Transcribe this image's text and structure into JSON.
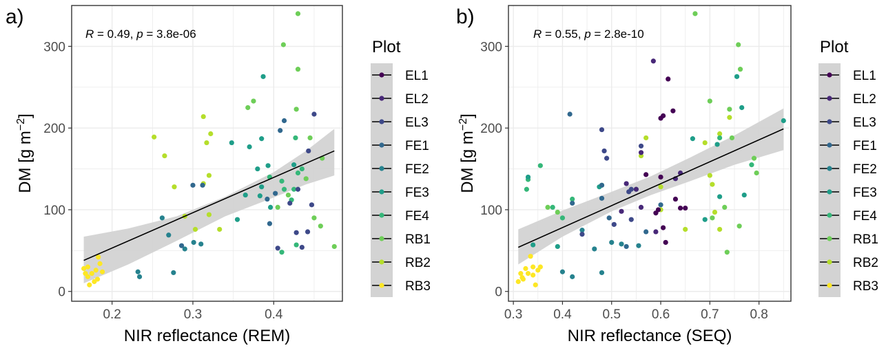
{
  "chart_data": [
    {
      "type": "scatter",
      "panel_tag": "a)",
      "xlabel": "NIR reflectance (REM)",
      "ylabel": "DM [g m",
      "ylabel_sup": "−2",
      "ylabel_end": "]",
      "xlim": [
        0.15,
        0.485
      ],
      "ylim": [
        -12,
        350
      ],
      "xticks": [
        "0.2",
        "0.3",
        "0.4"
      ],
      "xtick_values": [
        0.2,
        0.3,
        0.4
      ],
      "yticks": [
        "0",
        "100",
        "200",
        "300"
      ],
      "ytick_values": [
        0,
        100,
        200,
        300
      ],
      "grid": true,
      "stats": {
        "r_symbol": "R",
        "r_text": " = 0.49, ",
        "p_symbol": "p",
        "p_text": " = 3.8e-06"
      },
      "fit": {
        "x": [
          0.165,
          0.475
        ],
        "y": [
          38,
          172
        ]
      },
      "band": {
        "x": [
          0.165,
          0.22,
          0.28,
          0.34,
          0.4,
          0.44,
          0.475
        ],
        "lower": [
          10,
          33,
          62,
          92,
          115,
          131,
          142
        ],
        "upper": [
          67,
          77,
          92,
          116,
          146,
          172,
          199
        ]
      },
      "points": [
        {
          "x": 0.165,
          "y": 28,
          "c": "RB3"
        },
        {
          "x": 0.167,
          "y": 22,
          "c": "RB3"
        },
        {
          "x": 0.17,
          "y": 30,
          "c": "RB3"
        },
        {
          "x": 0.172,
          "y": 8,
          "c": "RB3"
        },
        {
          "x": 0.175,
          "y": 22,
          "c": "RB3"
        },
        {
          "x": 0.178,
          "y": 12,
          "c": "RB3"
        },
        {
          "x": 0.18,
          "y": 26,
          "c": "RB3"
        },
        {
          "x": 0.182,
          "y": 15,
          "c": "RB3"
        },
        {
          "x": 0.183,
          "y": 42,
          "c": "RB3"
        },
        {
          "x": 0.185,
          "y": 34,
          "c": "RB3"
        },
        {
          "x": 0.188,
          "y": 24,
          "c": "RB3"
        },
        {
          "x": 0.17,
          "y": 18,
          "c": "RB3"
        },
        {
          "x": 0.252,
          "y": 189,
          "c": "RB2"
        },
        {
          "x": 0.265,
          "y": 166,
          "c": "RB2"
        },
        {
          "x": 0.277,
          "y": 128,
          "c": "RB2"
        },
        {
          "x": 0.29,
          "y": 92,
          "c": "RB2"
        },
        {
          "x": 0.303,
          "y": 76,
          "c": "RB2"
        },
        {
          "x": 0.313,
          "y": 214,
          "c": "RB2"
        },
        {
          "x": 0.317,
          "y": 182,
          "c": "RB2"
        },
        {
          "x": 0.322,
          "y": 193,
          "c": "RB2"
        },
        {
          "x": 0.313,
          "y": 132,
          "c": "RB2"
        },
        {
          "x": 0.32,
          "y": 142,
          "c": "RB2"
        },
        {
          "x": 0.333,
          "y": 76,
          "c": "RB2"
        },
        {
          "x": 0.32,
          "y": 94,
          "c": "RB2"
        },
        {
          "x": 0.368,
          "y": 225,
          "c": "RB1"
        },
        {
          "x": 0.375,
          "y": 233,
          "c": "RB1"
        },
        {
          "x": 0.412,
          "y": 302,
          "c": "RB1"
        },
        {
          "x": 0.428,
          "y": 223,
          "c": "RB1"
        },
        {
          "x": 0.43,
          "y": 272,
          "c": "RB1"
        },
        {
          "x": 0.445,
          "y": 188,
          "c": "RB1"
        },
        {
          "x": 0.46,
          "y": 163,
          "c": "RB1"
        },
        {
          "x": 0.44,
          "y": 138,
          "c": "RB1"
        },
        {
          "x": 0.45,
          "y": 90,
          "c": "RB1"
        },
        {
          "x": 0.458,
          "y": 80,
          "c": "RB1"
        },
        {
          "x": 0.475,
          "y": 55,
          "c": "RB1"
        },
        {
          "x": 0.43,
          "y": 340,
          "c": "RB1"
        },
        {
          "x": 0.405,
          "y": 103,
          "c": "RB1"
        },
        {
          "x": 0.418,
          "y": 118,
          "c": "RB1"
        },
        {
          "x": 0.413,
          "y": 125,
          "c": "FE4"
        },
        {
          "x": 0.427,
          "y": 188,
          "c": "FE4"
        },
        {
          "x": 0.435,
          "y": 150,
          "c": "FE4"
        },
        {
          "x": 0.41,
          "y": 135,
          "c": "FE4"
        },
        {
          "x": 0.425,
          "y": 125,
          "c": "FE4"
        },
        {
          "x": 0.422,
          "y": 112,
          "c": "FE4"
        },
        {
          "x": 0.428,
          "y": 57,
          "c": "FE4"
        },
        {
          "x": 0.41,
          "y": 48,
          "c": "FE4"
        },
        {
          "x": 0.395,
          "y": 140,
          "c": "FE4"
        },
        {
          "x": 0.43,
          "y": 145,
          "c": "FE4"
        },
        {
          "x": 0.348,
          "y": 182,
          "c": "FE3"
        },
        {
          "x": 0.37,
          "y": 177,
          "c": "FE3"
        },
        {
          "x": 0.387,
          "y": 263,
          "c": "FE3"
        },
        {
          "x": 0.385,
          "y": 187,
          "c": "FE3"
        },
        {
          "x": 0.38,
          "y": 150,
          "c": "FE3"
        },
        {
          "x": 0.393,
          "y": 154,
          "c": "FE3"
        },
        {
          "x": 0.385,
          "y": 128,
          "c": "FE3"
        },
        {
          "x": 0.365,
          "y": 118,
          "c": "FE3"
        },
        {
          "x": 0.383,
          "y": 117,
          "c": "FE3"
        },
        {
          "x": 0.396,
          "y": 103,
          "c": "FE3"
        },
        {
          "x": 0.355,
          "y": 88,
          "c": "FE3"
        },
        {
          "x": 0.425,
          "y": 155,
          "c": "FE3"
        },
        {
          "x": 0.262,
          "y": 90,
          "c": "FE2"
        },
        {
          "x": 0.27,
          "y": 69,
          "c": "FE2"
        },
        {
          "x": 0.29,
          "y": 52,
          "c": "FE2"
        },
        {
          "x": 0.276,
          "y": 23,
          "c": "FE2"
        },
        {
          "x": 0.301,
          "y": 60,
          "c": "FE2"
        },
        {
          "x": 0.31,
          "y": 58,
          "c": "FE2"
        },
        {
          "x": 0.234,
          "y": 18,
          "c": "FE2"
        },
        {
          "x": 0.232,
          "y": 24,
          "c": "FE2"
        },
        {
          "x": 0.286,
          "y": 56,
          "c": "FE1"
        },
        {
          "x": 0.3,
          "y": 130,
          "c": "FE1"
        },
        {
          "x": 0.312,
          "y": 130,
          "c": "FE1"
        },
        {
          "x": 0.408,
          "y": 197,
          "c": "FE1"
        },
        {
          "x": 0.413,
          "y": 209,
          "c": "FE1"
        },
        {
          "x": 0.402,
          "y": 120,
          "c": "FE1"
        },
        {
          "x": 0.395,
          "y": 83,
          "c": "FE1"
        },
        {
          "x": 0.392,
          "y": 113,
          "c": "FE1"
        },
        {
          "x": 0.42,
          "y": 108,
          "c": "EL3"
        },
        {
          "x": 0.43,
          "y": 125,
          "c": "EL3"
        },
        {
          "x": 0.443,
          "y": 172,
          "c": "EL3"
        },
        {
          "x": 0.45,
          "y": 217,
          "c": "EL3"
        },
        {
          "x": 0.447,
          "y": 106,
          "c": "EL3"
        },
        {
          "x": 0.435,
          "y": 54,
          "c": "EL3"
        },
        {
          "x": 0.428,
          "y": 72,
          "c": "EL3"
        },
        {
          "x": 0.442,
          "y": 73,
          "c": "EL3"
        },
        {
          "x": 0.405,
          "y": 53,
          "c": "EL3"
        }
      ]
    },
    {
      "type": "scatter",
      "panel_tag": "b)",
      "xlabel": "NIR reflectance (SEQ)",
      "ylabel": "DM [g m",
      "ylabel_sup": "−2",
      "ylabel_end": "]",
      "xlim": [
        0.29,
        0.865
      ],
      "ylim": [
        -12,
        350
      ],
      "xticks": [
        "0.3",
        "0.4",
        "0.5",
        "0.6",
        "0.7",
        "0.8"
      ],
      "xtick_values": [
        0.3,
        0.4,
        0.5,
        0.6,
        0.7,
        0.8
      ],
      "yticks": [
        "0",
        "100",
        "200",
        "300"
      ],
      "ytick_values": [
        0,
        100,
        200,
        300
      ],
      "grid": true,
      "stats": {
        "r_symbol": "R",
        "r_text": " = 0.55, ",
        "p_symbol": "p",
        "p_text": " = 2.8e-10"
      },
      "fit": {
        "x": [
          0.31,
          0.85
        ],
        "y": [
          54,
          199
        ]
      },
      "band": {
        "x": [
          0.31,
          0.4,
          0.5,
          0.58,
          0.66,
          0.75,
          0.85
        ],
        "lower": [
          33,
          67,
          98,
          118,
          135,
          155,
          173
        ],
        "upper": [
          76,
          99,
          122,
          141,
          164,
          191,
          224
        ]
      },
      "points": [
        {
          "x": 0.31,
          "y": 12,
          "c": "RB3"
        },
        {
          "x": 0.315,
          "y": 22,
          "c": "RB3"
        },
        {
          "x": 0.32,
          "y": 15,
          "c": "RB3"
        },
        {
          "x": 0.325,
          "y": 28,
          "c": "RB3"
        },
        {
          "x": 0.33,
          "y": 22,
          "c": "RB3"
        },
        {
          "x": 0.335,
          "y": 43,
          "c": "RB3"
        },
        {
          "x": 0.34,
          "y": 20,
          "c": "RB3"
        },
        {
          "x": 0.345,
          "y": 8,
          "c": "RB3"
        },
        {
          "x": 0.35,
          "y": 26,
          "c": "RB3"
        },
        {
          "x": 0.355,
          "y": 30,
          "c": "RB3"
        },
        {
          "x": 0.34,
          "y": 30,
          "c": "RB3"
        },
        {
          "x": 0.318,
          "y": 17,
          "c": "RB3"
        },
        {
          "x": 0.56,
          "y": 166,
          "c": "RB2"
        },
        {
          "x": 0.57,
          "y": 188,
          "c": "RB2"
        },
        {
          "x": 0.6,
          "y": 100,
          "c": "RB2"
        },
        {
          "x": 0.65,
          "y": 76,
          "c": "RB2"
        },
        {
          "x": 0.69,
          "y": 182,
          "c": "RB2"
        },
        {
          "x": 0.7,
          "y": 142,
          "c": "RB2"
        },
        {
          "x": 0.705,
          "y": 131,
          "c": "RB2"
        },
        {
          "x": 0.71,
          "y": 97,
          "c": "RB2"
        },
        {
          "x": 0.72,
          "y": 193,
          "c": "RB2"
        },
        {
          "x": 0.74,
          "y": 213,
          "c": "RB2"
        },
        {
          "x": 0.72,
          "y": 76,
          "c": "RB2"
        },
        {
          "x": 0.6,
          "y": 128,
          "c": "RB2"
        },
        {
          "x": 0.67,
          "y": 340,
          "c": "RB1"
        },
        {
          "x": 0.7,
          "y": 233,
          "c": "RB1"
        },
        {
          "x": 0.74,
          "y": 223,
          "c": "RB1"
        },
        {
          "x": 0.758,
          "y": 302,
          "c": "RB1"
        },
        {
          "x": 0.762,
          "y": 272,
          "c": "RB1"
        },
        {
          "x": 0.79,
          "y": 163,
          "c": "RB1"
        },
        {
          "x": 0.795,
          "y": 145,
          "c": "RB1"
        },
        {
          "x": 0.76,
          "y": 80,
          "c": "RB1"
        },
        {
          "x": 0.735,
          "y": 48,
          "c": "RB1"
        },
        {
          "x": 0.705,
          "y": 90,
          "c": "RB1"
        },
        {
          "x": 0.73,
          "y": 103,
          "c": "RB1"
        },
        {
          "x": 0.745,
          "y": 188,
          "c": "RB1"
        },
        {
          "x": 0.37,
          "y": 103,
          "c": "RB1"
        },
        {
          "x": 0.39,
          "y": 97,
          "c": "RB1"
        },
        {
          "x": 0.33,
          "y": 137,
          "c": "FE4"
        },
        {
          "x": 0.355,
          "y": 154,
          "c": "FE4"
        },
        {
          "x": 0.38,
          "y": 103,
          "c": "FE4"
        },
        {
          "x": 0.4,
          "y": 90,
          "c": "FE4"
        },
        {
          "x": 0.48,
          "y": 130,
          "c": "FE4"
        },
        {
          "x": 0.55,
          "y": 125,
          "c": "FE4"
        },
        {
          "x": 0.72,
          "y": 188,
          "c": "FE4"
        },
        {
          "x": 0.785,
          "y": 155,
          "c": "FE4"
        },
        {
          "x": 0.327,
          "y": 125,
          "c": "FE4"
        },
        {
          "x": 0.42,
          "y": 113,
          "c": "FE4"
        },
        {
          "x": 0.33,
          "y": 140,
          "c": "FE3"
        },
        {
          "x": 0.34,
          "y": 57,
          "c": "FE3"
        },
        {
          "x": 0.39,
          "y": 55,
          "c": "FE3"
        },
        {
          "x": 0.475,
          "y": 128,
          "c": "FE3"
        },
        {
          "x": 0.665,
          "y": 187,
          "c": "FE3"
        },
        {
          "x": 0.755,
          "y": 263,
          "c": "FE3"
        },
        {
          "x": 0.765,
          "y": 225,
          "c": "FE3"
        },
        {
          "x": 0.72,
          "y": 116,
          "c": "FE3"
        },
        {
          "x": 0.77,
          "y": 118,
          "c": "FE3"
        },
        {
          "x": 0.69,
          "y": 88,
          "c": "FE3"
        },
        {
          "x": 0.85,
          "y": 209,
          "c": "FE3"
        },
        {
          "x": 0.715,
          "y": 180,
          "c": "FE3"
        },
        {
          "x": 0.4,
          "y": 24,
          "c": "FE2"
        },
        {
          "x": 0.42,
          "y": 18,
          "c": "FE2"
        },
        {
          "x": 0.48,
          "y": 23,
          "c": "FE2"
        },
        {
          "x": 0.465,
          "y": 52,
          "c": "FE2"
        },
        {
          "x": 0.5,
          "y": 60,
          "c": "FE2"
        },
        {
          "x": 0.52,
          "y": 58,
          "c": "FE2"
        },
        {
          "x": 0.555,
          "y": 56,
          "c": "FE2"
        },
        {
          "x": 0.44,
          "y": 75,
          "c": "FE2"
        },
        {
          "x": 0.415,
          "y": 217,
          "c": "FE1"
        },
        {
          "x": 0.48,
          "y": 130,
          "c": "FE1"
        },
        {
          "x": 0.495,
          "y": 90,
          "c": "FE1"
        },
        {
          "x": 0.53,
          "y": 55,
          "c": "FE1"
        },
        {
          "x": 0.57,
          "y": 73,
          "c": "FE1"
        },
        {
          "x": 0.6,
          "y": 106,
          "c": "FE1"
        },
        {
          "x": 0.48,
          "y": 114,
          "c": "FE1"
        },
        {
          "x": 0.42,
          "y": 108,
          "c": "FE1"
        },
        {
          "x": 0.48,
          "y": 198,
          "c": "EL3"
        },
        {
          "x": 0.485,
          "y": 172,
          "c": "EL3"
        },
        {
          "x": 0.49,
          "y": 163,
          "c": "EL3"
        },
        {
          "x": 0.535,
          "y": 122,
          "c": "EL3"
        },
        {
          "x": 0.54,
          "y": 125,
          "c": "EL3"
        },
        {
          "x": 0.56,
          "y": 178,
          "c": "EL3"
        },
        {
          "x": 0.505,
          "y": 82,
          "c": "EL3"
        },
        {
          "x": 0.54,
          "y": 88,
          "c": "EL3"
        },
        {
          "x": 0.44,
          "y": 70,
          "c": "EL3"
        },
        {
          "x": 0.53,
          "y": 132,
          "c": "EL2"
        },
        {
          "x": 0.55,
          "y": 125,
          "c": "EL2"
        },
        {
          "x": 0.56,
          "y": 170,
          "c": "EL2"
        },
        {
          "x": 0.585,
          "y": 282,
          "c": "EL2"
        },
        {
          "x": 0.63,
          "y": 138,
          "c": "EL2"
        },
        {
          "x": 0.64,
          "y": 145,
          "c": "EL2"
        },
        {
          "x": 0.56,
          "y": 103,
          "c": "EL2"
        },
        {
          "x": 0.52,
          "y": 98,
          "c": "EL2"
        },
        {
          "x": 0.59,
          "y": 73,
          "c": "EL2"
        },
        {
          "x": 0.6,
          "y": 212,
          "c": "EL1"
        },
        {
          "x": 0.605,
          "y": 215,
          "c": "EL1"
        },
        {
          "x": 0.615,
          "y": 260,
          "c": "EL1"
        },
        {
          "x": 0.625,
          "y": 221,
          "c": "EL1"
        },
        {
          "x": 0.57,
          "y": 143,
          "c": "EL1"
        },
        {
          "x": 0.6,
          "y": 140,
          "c": "EL1"
        },
        {
          "x": 0.63,
          "y": 113,
          "c": "EL1"
        },
        {
          "x": 0.64,
          "y": 102,
          "c": "EL1"
        },
        {
          "x": 0.65,
          "y": 102,
          "c": "EL1"
        },
        {
          "x": 0.59,
          "y": 96,
          "c": "EL1"
        },
        {
          "x": 0.605,
          "y": 78,
          "c": "EL1"
        },
        {
          "x": 0.61,
          "y": 60,
          "c": "EL1"
        },
        {
          "x": 0.595,
          "y": 100,
          "c": "EL1"
        }
      ]
    }
  ],
  "legend": {
    "title": "Plot",
    "placement": "right",
    "items": [
      {
        "key": "EL1",
        "label": "EL1",
        "color": "#440154"
      },
      {
        "key": "EL2",
        "label": "EL2",
        "color": "#482878"
      },
      {
        "key": "EL3",
        "label": "EL3",
        "color": "#3e4989"
      },
      {
        "key": "FE1",
        "label": "FE1",
        "color": "#31688e"
      },
      {
        "key": "FE2",
        "label": "FE2",
        "color": "#26828e"
      },
      {
        "key": "FE3",
        "label": "FE3",
        "color": "#1f9e89"
      },
      {
        "key": "FE4",
        "label": "FE4",
        "color": "#35b779"
      },
      {
        "key": "RB1",
        "label": "RB1",
        "color": "#6ece58"
      },
      {
        "key": "RB2",
        "label": "RB2",
        "color": "#b5de2b"
      },
      {
        "key": "RB3",
        "label": "RB3",
        "color": "#fde725"
      }
    ]
  },
  "colors": {
    "band": "#d3d3d3",
    "fit": "#000000",
    "grid": "#ebebeb",
    "frame": "#333333"
  }
}
